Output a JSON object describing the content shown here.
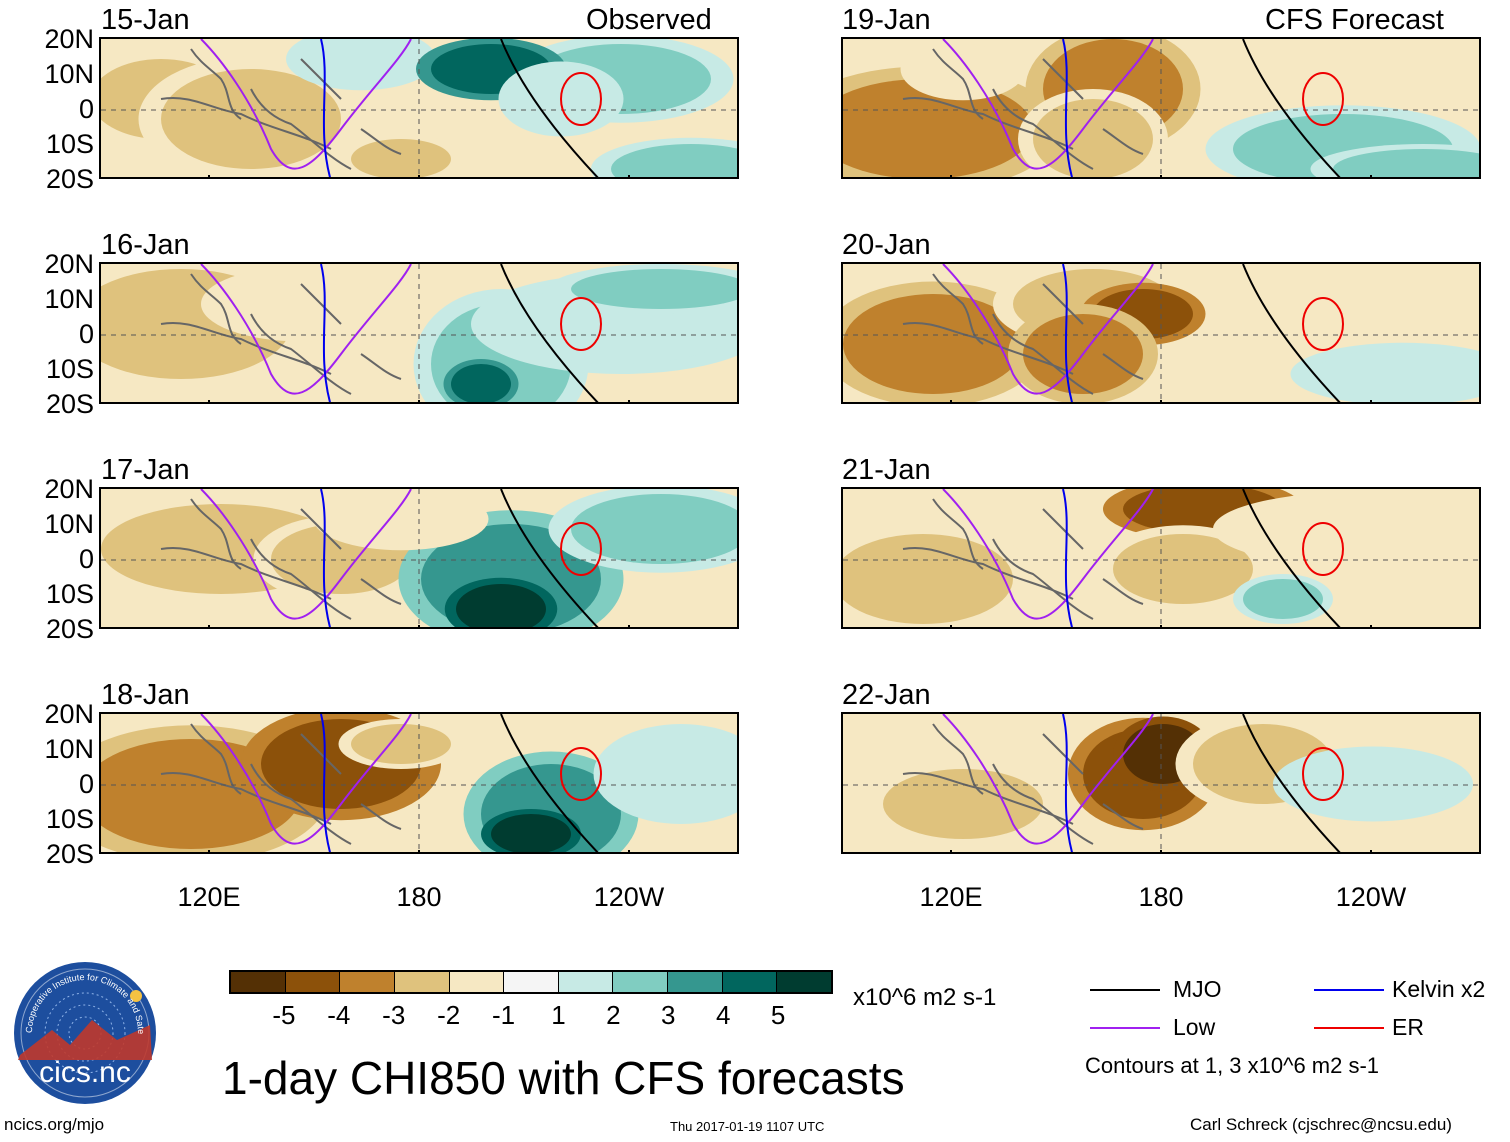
{
  "panels_left": [
    {
      "date": "15-Jan",
      "tag": "Observed"
    },
    {
      "date": "16-Jan",
      "tag": ""
    },
    {
      "date": "17-Jan",
      "tag": ""
    },
    {
      "date": "18-Jan",
      "tag": ""
    }
  ],
  "panels_right": [
    {
      "date": "19-Jan",
      "tag": "CFS Forecast"
    },
    {
      "date": "20-Jan",
      "tag": ""
    },
    {
      "date": "21-Jan",
      "tag": ""
    },
    {
      "date": "22-Jan",
      "tag": ""
    }
  ],
  "lat_labels": [
    "20N",
    "10N",
    "0",
    "10S",
    "20S"
  ],
  "lon_labels": [
    "120E",
    "180",
    "120W"
  ],
  "colorbar": {
    "colors": [
      "#543005",
      "#8c510a",
      "#bf812d",
      "#dfc27d",
      "#f6e8c3",
      "#f5f5f5",
      "#c7eae5",
      "#80cdc1",
      "#35978f",
      "#01665e",
      "#003c30"
    ],
    "ticks": [
      "-5",
      "-4",
      "-3",
      "-2",
      "-1",
      "1",
      "2",
      "3",
      "4",
      "5"
    ],
    "units": "x10^6 m2 s-1"
  },
  "legend": {
    "mjo": {
      "label": "MJO",
      "color": "#000000"
    },
    "kelvin": {
      "label": "Kelvin x2",
      "color": "#0000ee"
    },
    "low": {
      "label": "Low",
      "color": "#a020f0"
    },
    "er": {
      "label": "ER",
      "color": "#ee0000"
    },
    "note": "Contours at 1, 3 x10^6 m2 s-1"
  },
  "title": "1-day CHI850 with CFS forecasts",
  "logo_text": "cics.nc",
  "logo_ring": "Cooperative Institute for Climate and Satellites",
  "url": "ncics.org/mjo",
  "timestamp": "Thu 2017-01-19 1107 UTC",
  "author": "Carl Schreck (cjschrec@ncsu.edu)"
}
